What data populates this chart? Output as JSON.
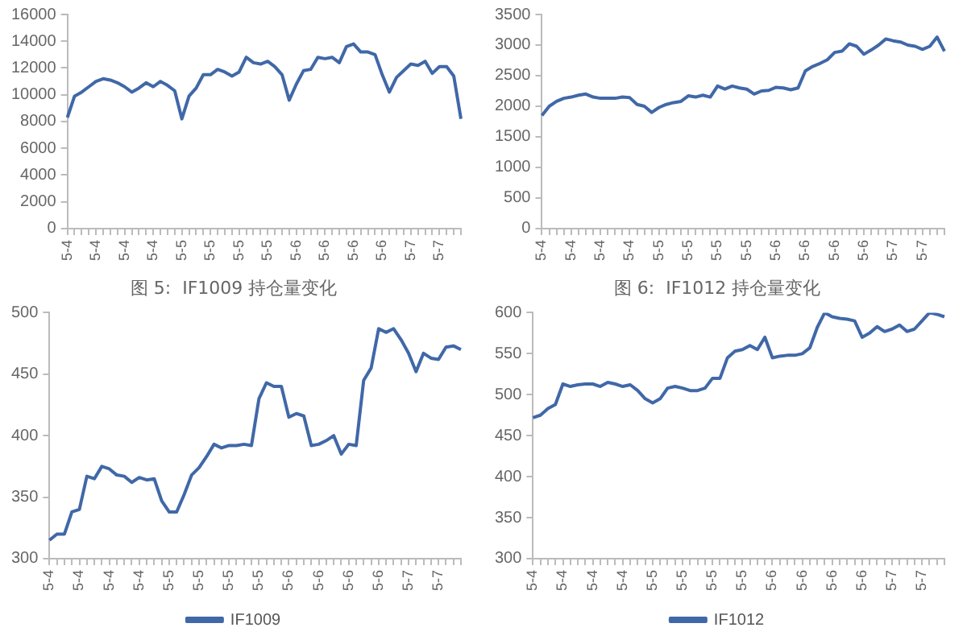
{
  "chart_data": [
    {
      "type": "line",
      "categories": [
        "5-4",
        null,
        null,
        null,
        "5-4",
        null,
        null,
        null,
        "5-4",
        null,
        null,
        null,
        "5-4",
        null,
        null,
        null,
        "5-5",
        null,
        null,
        null,
        "5-5",
        null,
        null,
        null,
        "5-5",
        null,
        null,
        null,
        "5-5",
        null,
        null,
        null,
        "5-6",
        null,
        null,
        null,
        "5-6",
        null,
        null,
        null,
        "5-6",
        null,
        null,
        null,
        "5-6",
        null,
        null,
        null,
        "5-7",
        null,
        null,
        null,
        "5-7",
        null,
        null,
        null
      ],
      "series": [
        {
          "color": "#4068a8",
          "values": [
            8300,
            9900,
            10200,
            10600,
            11000,
            11200,
            11100,
            10900,
            10600,
            10200,
            10500,
            10900,
            10600,
            11000,
            10700,
            10300,
            8200,
            9900,
            10500,
            11500,
            11500,
            11900,
            11700,
            11400,
            11700,
            12800,
            12400,
            12300,
            12500,
            12100,
            11500,
            9600,
            10800,
            11800,
            11900,
            12800,
            12700,
            12800,
            12400,
            13600,
            13800,
            13200,
            13200,
            13000,
            11500,
            10200,
            11300,
            11800,
            12300,
            12200,
            12500,
            11600,
            12100,
            12100,
            11400,
            8200
          ]
        }
      ],
      "ylim": [
        0,
        16000
      ],
      "yticks": [
        0,
        2000,
        4000,
        6000,
        8000,
        10000,
        12000,
        14000,
        16000
      ],
      "grid": false,
      "marker": "none"
    },
    {
      "type": "line",
      "categories": [
        "5-4",
        null,
        null,
        null,
        "5-4",
        null,
        null,
        null,
        "5-4",
        null,
        null,
        null,
        "5-4",
        null,
        null,
        null,
        "5-5",
        null,
        null,
        null,
        "5-5",
        null,
        null,
        null,
        "5-5",
        null,
        null,
        null,
        "5-5",
        null,
        null,
        null,
        "5-6",
        null,
        null,
        null,
        "5-6",
        null,
        null,
        null,
        "5-6",
        null,
        null,
        null,
        "5-6",
        null,
        null,
        null,
        "5-7",
        null,
        null,
        null,
        "5-7",
        null,
        null,
        null
      ],
      "series": [
        {
          "color": "#4068a8",
          "values": [
            1850,
            2000,
            2080,
            2130,
            2150,
            2180,
            2200,
            2150,
            2130,
            2130,
            2130,
            2150,
            2140,
            2030,
            2000,
            1900,
            1980,
            2030,
            2060,
            2080,
            2170,
            2150,
            2180,
            2150,
            2330,
            2280,
            2330,
            2300,
            2280,
            2200,
            2250,
            2260,
            2310,
            2300,
            2270,
            2300,
            2580,
            2650,
            2700,
            2760,
            2880,
            2900,
            3020,
            2980,
            2850,
            2920,
            3000,
            3100,
            3070,
            3050,
            3000,
            2980,
            2930,
            2980,
            3130,
            2900
          ]
        }
      ],
      "ylim": [
        0,
        3500
      ],
      "yticks": [
        0,
        500,
        1000,
        1500,
        2000,
        2500,
        3000,
        3500
      ],
      "grid": false,
      "marker": "none"
    },
    {
      "type": "line",
      "title": "图 5:  IF1009 持仓量变化",
      "categories": [
        "5-4",
        null,
        null,
        null,
        "5-4",
        null,
        null,
        null,
        "5-4",
        null,
        null,
        null,
        "5-4",
        null,
        null,
        null,
        "5-5",
        null,
        null,
        null,
        "5-5",
        null,
        null,
        null,
        "5-5",
        null,
        null,
        null,
        "5-5",
        null,
        null,
        null,
        "5-6",
        null,
        null,
        null,
        "5-6",
        null,
        null,
        null,
        "5-6",
        null,
        null,
        null,
        "5-6",
        null,
        null,
        null,
        "5-7",
        null,
        null,
        null,
        "5-7",
        null,
        null,
        null
      ],
      "series": [
        {
          "name": "IF1009",
          "color": "#4068a8",
          "values": [
            315,
            320,
            320,
            338,
            340,
            367,
            365,
            375,
            373,
            368,
            367,
            362,
            366,
            364,
            365,
            347,
            338,
            338,
            352,
            368,
            374,
            383,
            393,
            390,
            392,
            392,
            393,
            392,
            430,
            443,
            440,
            440,
            415,
            418,
            416,
            392,
            393,
            396,
            400,
            385,
            393,
            392,
            445,
            455,
            487,
            484,
            487,
            478,
            467,
            452,
            467,
            463,
            462,
            472,
            473,
            470
          ]
        }
      ],
      "ylim": [
        300,
        500
      ],
      "yticks": [
        300,
        350,
        400,
        450,
        500
      ],
      "grid": false,
      "marker": "none",
      "legend": "bottom"
    },
    {
      "type": "line",
      "title": "图 6:  IF1012 持仓量变化",
      "categories": [
        "5-4",
        null,
        null,
        null,
        "5-4",
        null,
        null,
        null,
        "5-4",
        null,
        null,
        null,
        "5-4",
        null,
        null,
        null,
        "5-5",
        null,
        null,
        null,
        "5-5",
        null,
        null,
        null,
        "5-5",
        null,
        null,
        null,
        "5-5",
        null,
        null,
        null,
        "5-6",
        null,
        null,
        null,
        "5-6",
        null,
        null,
        null,
        "5-6",
        null,
        null,
        null,
        "5-6",
        null,
        null,
        null,
        "5-7",
        null,
        null,
        null,
        "5-7",
        null,
        null,
        null
      ],
      "series": [
        {
          "name": "IF1012",
          "color": "#4068a8",
          "values": [
            472,
            475,
            483,
            488,
            513,
            510,
            512,
            513,
            513,
            510,
            515,
            513,
            510,
            512,
            505,
            495,
            490,
            495,
            508,
            510,
            508,
            505,
            505,
            508,
            520,
            520,
            545,
            553,
            555,
            560,
            555,
            570,
            545,
            547,
            548,
            548,
            550,
            557,
            582,
            600,
            595,
            593,
            592,
            590,
            570,
            575,
            583,
            577,
            580,
            585,
            577,
            580,
            590,
            600,
            598,
            595
          ]
        }
      ],
      "ylim": [
        300,
        600
      ],
      "yticks": [
        300,
        350,
        400,
        450,
        500,
        550,
        600
      ],
      "grid": false,
      "marker": "none",
      "legend": "bottom"
    }
  ]
}
